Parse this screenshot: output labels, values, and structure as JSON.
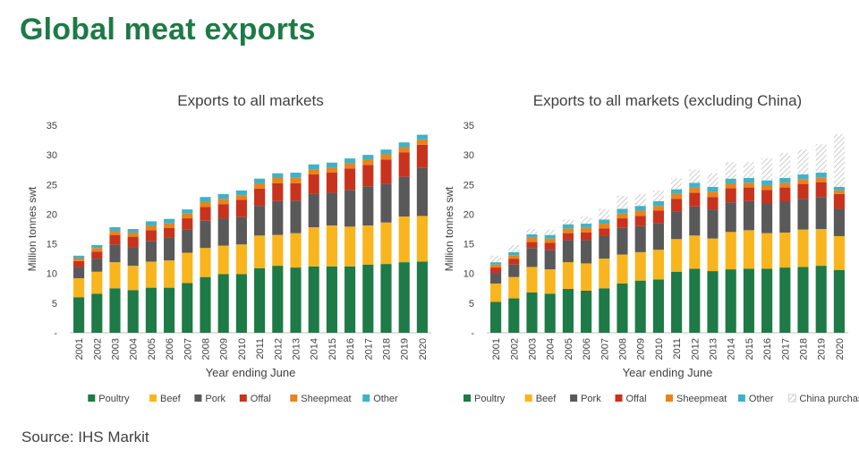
{
  "title": "Global meat exports",
  "source": "Source: IHS Markit",
  "colors": {
    "Poultry": "#1e7a46",
    "Beef": "#f8b51d",
    "Pork": "#595959",
    "Offal": "#c8331d",
    "Sheepmeat": "#e8841d",
    "Other": "#3fb2c8",
    "China purchases": "hatch"
  },
  "chart_data": [
    {
      "type": "bar",
      "stacked": true,
      "title": "Exports to all markets",
      "xlabel": "Year ending June",
      "ylabel": "Million tonnes swt",
      "ylim": [
        0,
        35
      ],
      "yticks": [
        "-",
        "5",
        "10",
        "15",
        "20",
        "25",
        "30",
        "35"
      ],
      "legend_position": "bottom",
      "grid": false,
      "categories": [
        "2001",
        "2002",
        "2003",
        "2004",
        "2005",
        "2006",
        "2007",
        "2008",
        "2009",
        "2010",
        "2011",
        "2012",
        "2013",
        "2014",
        "2015",
        "2016",
        "2017",
        "2018",
        "2019",
        "2020"
      ],
      "series": [
        {
          "name": "Poultry",
          "values": [
            6.0,
            6.6,
            7.5,
            7.2,
            7.6,
            7.6,
            8.4,
            9.4,
            9.9,
            9.9,
            10.9,
            11.3,
            11.0,
            11.2,
            11.2,
            11.2,
            11.5,
            11.6,
            11.9,
            12.0
          ]
        },
        {
          "name": "Beef",
          "values": [
            3.2,
            3.7,
            4.4,
            4.1,
            4.4,
            4.6,
            5.1,
            4.9,
            4.8,
            5.0,
            5.5,
            5.2,
            5.8,
            6.6,
            6.9,
            6.7,
            6.6,
            7.0,
            7.7,
            7.7
          ]
        },
        {
          "name": "Pork",
          "values": [
            1.9,
            2.2,
            3.0,
            3.1,
            3.5,
            3.8,
            3.9,
            4.6,
            4.6,
            4.6,
            5.0,
            5.7,
            5.5,
            5.6,
            5.5,
            6.2,
            6.6,
            6.5,
            6.7,
            8.1
          ]
        },
        {
          "name": "Offal",
          "values": [
            1.0,
            1.2,
            1.6,
            1.8,
            1.8,
            1.7,
            1.9,
            2.3,
            2.4,
            2.9,
            2.9,
            3.0,
            2.9,
            3.3,
            3.4,
            3.6,
            3.6,
            4.1,
            4.1,
            3.9
          ]
        },
        {
          "name": "Sheepmeat",
          "values": [
            0.5,
            0.6,
            0.7,
            0.7,
            0.8,
            0.8,
            0.8,
            0.9,
            0.9,
            0.8,
            0.9,
            0.9,
            1.0,
            0.9,
            0.9,
            0.9,
            0.9,
            0.9,
            0.9,
            0.9
          ]
        },
        {
          "name": "Other",
          "values": [
            0.4,
            0.5,
            0.6,
            0.6,
            0.7,
            0.7,
            0.7,
            0.8,
            0.8,
            0.8,
            0.8,
            0.8,
            0.8,
            0.8,
            0.8,
            0.8,
            0.8,
            0.8,
            0.8,
            0.8
          ]
        }
      ]
    },
    {
      "type": "bar",
      "stacked": true,
      "title": "Exports to all markets (excluding China)",
      "xlabel": "Year ending June",
      "ylabel": "Million tonnes swt",
      "ylim": [
        0,
        35
      ],
      "yticks": [
        "-",
        "5",
        "10",
        "15",
        "20",
        "25",
        "30",
        "35"
      ],
      "legend_position": "bottom",
      "grid": false,
      "categories": [
        "2001",
        "2002",
        "2003",
        "2004",
        "2005",
        "2006",
        "2007",
        "2008",
        "2009",
        "2010",
        "2011",
        "2012",
        "2013",
        "2014",
        "2015",
        "2016",
        "2017",
        "2018",
        "2019",
        "2020"
      ],
      "series": [
        {
          "name": "Poultry",
          "values": [
            5.2,
            5.8,
            6.8,
            6.6,
            7.4,
            7.1,
            7.5,
            8.3,
            8.8,
            9.0,
            10.3,
            10.8,
            10.4,
            10.7,
            10.8,
            10.8,
            11.0,
            11.1,
            11.3,
            10.6
          ]
        },
        {
          "name": "Beef",
          "values": [
            3.1,
            3.6,
            4.3,
            4.1,
            4.5,
            4.6,
            5.0,
            4.9,
            4.8,
            5.0,
            5.5,
            5.6,
            5.5,
            6.3,
            6.5,
            6.0,
            5.9,
            6.3,
            6.2,
            5.7
          ]
        },
        {
          "name": "Pork",
          "values": [
            1.8,
            2.1,
            3.2,
            3.3,
            3.7,
            3.9,
            3.8,
            4.5,
            4.4,
            4.5,
            4.7,
            4.9,
            4.9,
            5.0,
            4.9,
            5.0,
            5.2,
            5.2,
            5.4,
            4.6
          ]
        },
        {
          "name": "Offal",
          "values": [
            0.9,
            1.0,
            1.0,
            1.2,
            1.2,
            1.3,
            1.3,
            1.6,
            1.7,
            2.1,
            2.1,
            2.3,
            2.1,
            2.4,
            2.3,
            2.3,
            2.4,
            2.5,
            2.5,
            2.5
          ]
        },
        {
          "name": "Sheepmeat",
          "values": [
            0.5,
            0.6,
            0.7,
            0.7,
            0.8,
            0.8,
            0.8,
            0.8,
            0.9,
            0.8,
            0.8,
            0.9,
            0.9,
            0.8,
            0.8,
            0.8,
            0.8,
            0.8,
            0.8,
            0.6
          ]
        },
        {
          "name": "Other",
          "values": [
            0.4,
            0.5,
            0.6,
            0.6,
            0.7,
            0.7,
            0.7,
            0.8,
            0.8,
            0.8,
            0.8,
            0.8,
            0.8,
            0.8,
            0.8,
            0.8,
            0.8,
            0.8,
            0.8,
            0.6
          ]
        },
        {
          "name": "China purchases",
          "values": [
            1.1,
            1.2,
            0.9,
            0.9,
            0.8,
            1.2,
            1.8,
            2.2,
            2.0,
            1.8,
            1.9,
            2.2,
            2.3,
            2.8,
            2.7,
            3.7,
            4.2,
            4.2,
            4.8,
            8.9
          ]
        }
      ]
    }
  ]
}
